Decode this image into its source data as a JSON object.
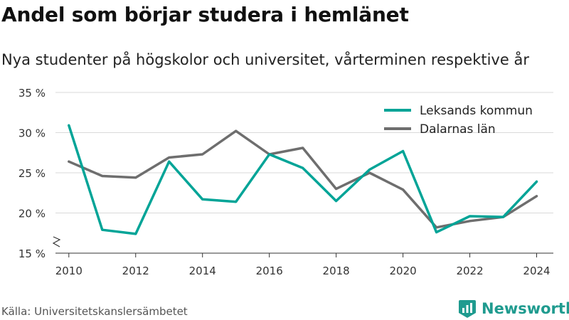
{
  "title": "Andel som börjar studera i hemlänet",
  "subtitle": "Nya studenter på högskolor och universitet, vårterminen respektive år",
  "source": "Källa: Universitetskanslersämbetet",
  "brand": {
    "name": "Newsworthy",
    "icon": "newsworthy-logo-icon",
    "color": "#1f9b8f"
  },
  "chart_data": {
    "type": "line",
    "x": [
      2010,
      2011,
      2012,
      2013,
      2014,
      2015,
      2016,
      2017,
      2018,
      2019,
      2020,
      2021,
      2022,
      2023,
      2024
    ],
    "series": [
      {
        "name": "Leksands kommun",
        "color": "#00a497",
        "values": [
          30.9,
          17.9,
          17.4,
          26.4,
          21.7,
          21.4,
          27.3,
          25.6,
          21.5,
          25.4,
          27.7,
          17.6,
          19.6,
          19.5,
          23.9
        ]
      },
      {
        "name": "Dalarnas län",
        "color": "#6e6e6e",
        "values": [
          26.4,
          24.6,
          24.4,
          26.9,
          27.3,
          30.2,
          27.3,
          28.1,
          23.0,
          25.0,
          22.9,
          18.2,
          19.0,
          19.5,
          22.1
        ]
      }
    ],
    "yticks": [
      15,
      20,
      25,
      30,
      35
    ],
    "ytick_labels": [
      "15 %",
      "20 %",
      "25 %",
      "30 %",
      "35 %"
    ],
    "xticks": [
      2010,
      2012,
      2014,
      2016,
      2018,
      2020,
      2022,
      2024
    ],
    "xtick_labels": [
      "2010",
      "2012",
      "2014",
      "2016",
      "2018",
      "2020",
      "2022",
      "2024"
    ],
    "ylim": [
      15,
      35
    ],
    "xlim": [
      2009.6,
      2024.5
    ],
    "grid": "horizontal",
    "axis_break": true,
    "legend_position": "top-right"
  }
}
